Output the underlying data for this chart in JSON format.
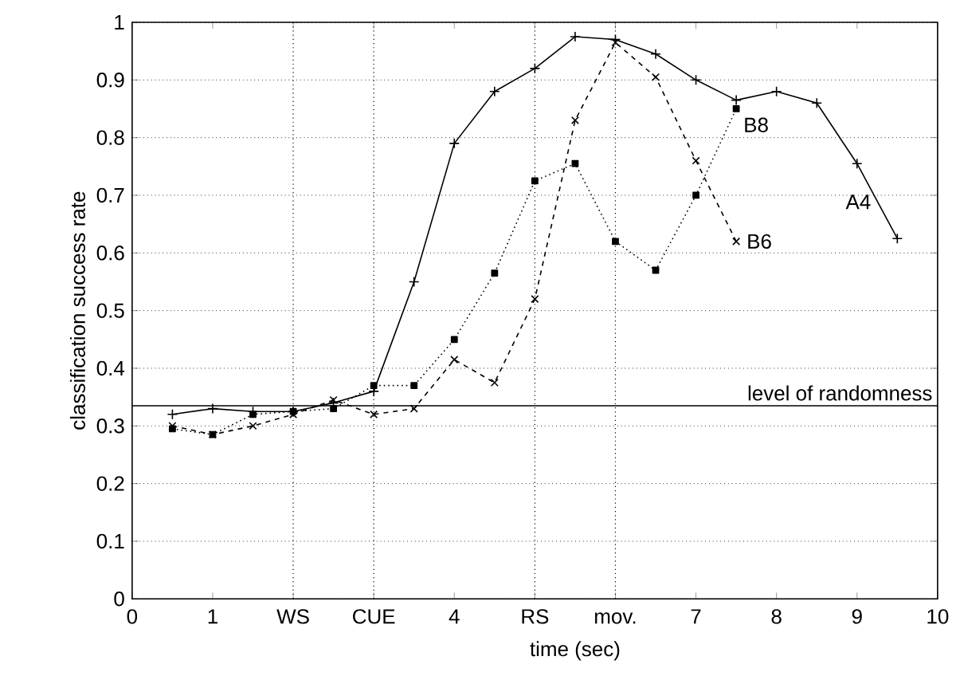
{
  "chart_data": {
    "type": "line",
    "xlabel": "time (sec)",
    "ylabel": "classification success rate",
    "x": [
      0.5,
      1,
      1.5,
      2,
      2.5,
      3,
      3.5,
      4,
      4.5,
      5,
      5.5,
      6,
      6.5,
      7,
      7.5,
      8,
      8.5,
      9,
      9.5
    ],
    "series": [
      {
        "name": "A4",
        "color": "#000000",
        "marker": "plus",
        "line_style": "solid",
        "values": [
          0.32,
          0.33,
          0.325,
          0.325,
          0.34,
          0.36,
          0.55,
          0.79,
          0.88,
          0.92,
          0.975,
          0.97,
          0.945,
          0.9,
          0.865,
          0.88,
          0.86,
          0.755,
          0.625
        ]
      },
      {
        "name": "B6",
        "color": "#000000",
        "marker": "cross",
        "line_style": "dashed",
        "values": [
          0.3,
          0.285,
          0.3,
          0.32,
          0.345,
          0.32,
          0.33,
          0.415,
          0.375,
          0.52,
          0.83,
          0.965,
          0.905,
          0.76,
          0.62,
          null,
          null,
          null,
          null
        ]
      },
      {
        "name": "B8",
        "color": "#000000",
        "marker": "square",
        "line_style": "dotted",
        "values": [
          0.295,
          0.285,
          0.32,
          0.325,
          0.33,
          0.37,
          0.37,
          0.45,
          0.565,
          0.725,
          0.755,
          0.62,
          0.57,
          0.7,
          0.85,
          null,
          null,
          null,
          null
        ]
      }
    ],
    "xlim": [
      0,
      10
    ],
    "ylim": [
      0,
      1
    ],
    "xticks": [
      0,
      1,
      {
        "value": 2,
        "label": "WS"
      },
      {
        "value": 3,
        "label": "CUE"
      },
      4,
      {
        "value": 5,
        "label": "RS"
      },
      {
        "value": 6,
        "label": "mov."
      },
      7,
      8,
      9,
      10
    ],
    "yticks": [
      0,
      0.1,
      0.2,
      0.3,
      0.4,
      0.5,
      0.6,
      0.7,
      0.8,
      0.9,
      1
    ],
    "grid": "y",
    "ref_lines": [
      {
        "axis": "y",
        "value": 0.335,
        "label": "level of randomness",
        "line_style": "solid"
      },
      {
        "axis": "x",
        "value": 2,
        "line_style": "dotted"
      },
      {
        "axis": "x",
        "value": 3,
        "line_style": "dotted"
      },
      {
        "axis": "x",
        "value": 5,
        "line_style": "dotted"
      },
      {
        "axis": "x",
        "value": 6,
        "line_style": "dotted"
      }
    ]
  }
}
